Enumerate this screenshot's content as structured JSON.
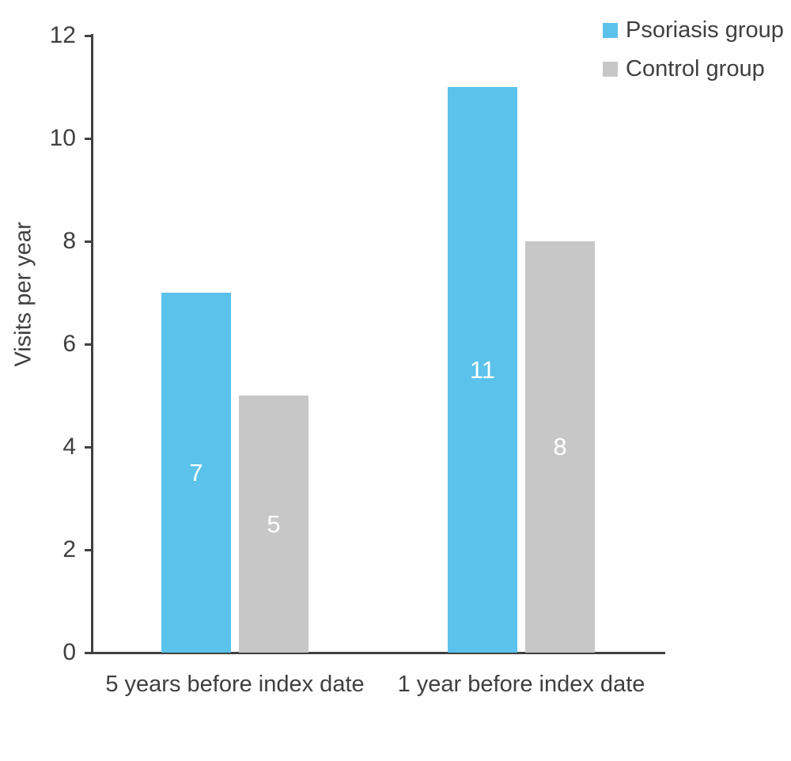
{
  "chart_data": {
    "type": "bar",
    "title": "",
    "xlabel": "",
    "ylabel": "Visits per year",
    "categories": [
      "5 years before index date",
      "1 year before index date"
    ],
    "series": [
      {
        "name": "Psoriasis group",
        "color": "#5bc2eb",
        "values": [
          7,
          11
        ]
      },
      {
        "name": "Control group",
        "color": "#c7c7c7",
        "values": [
          5,
          8
        ]
      }
    ],
    "bar_value_labels": [
      [
        "7",
        "11"
      ],
      [
        "5",
        "8"
      ]
    ],
    "bar_value_label_color": "#ffffff",
    "ylim": [
      0,
      12
    ],
    "yticks": [
      0,
      2,
      4,
      6,
      8,
      10,
      12
    ],
    "grid": false,
    "legend_position": "top-right",
    "axis_color": "#404040",
    "text_color": "#3f3f3f",
    "background_color": "#ffffff"
  }
}
